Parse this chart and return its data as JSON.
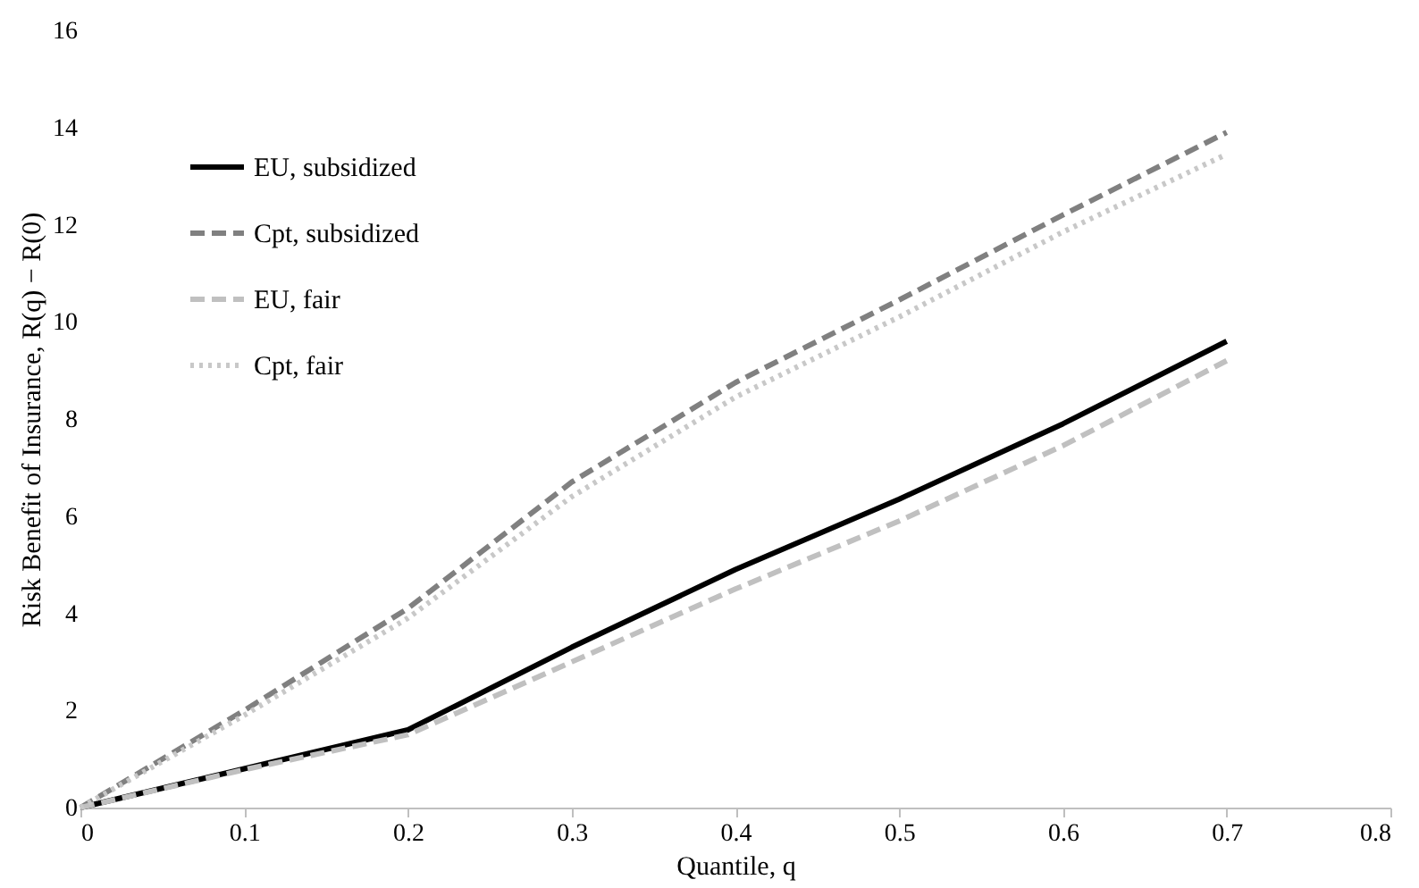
{
  "chart_data": {
    "type": "line",
    "xlabel": "Quantile, q",
    "ylabel": "Risk Benefit of Insurance, R(q) − R(0)",
    "x": [
      0,
      0.1,
      0.2,
      0.3,
      0.4,
      0.5,
      0.6,
      0.7
    ],
    "series": [
      {
        "name": "EU, subsidized",
        "color": "#000000",
        "line_style": "solid",
        "values": [
          0,
          0.8,
          1.6,
          3.3,
          4.9,
          6.35,
          7.9,
          9.6
        ]
      },
      {
        "name": "Cpt, subsidized",
        "color": "#808080",
        "line_style": "dashed",
        "values": [
          0,
          2.0,
          4.1,
          6.7,
          8.75,
          10.45,
          12.2,
          13.9
        ]
      },
      {
        "name": "EU, fair",
        "color": "#c0c0c0",
        "line_style": "dashed",
        "values": [
          0,
          0.78,
          1.5,
          3.0,
          4.5,
          5.9,
          7.45,
          9.2
        ]
      },
      {
        "name": "Cpt, fair",
        "color": "#c8c8c8",
        "line_style": "dotted",
        "values": [
          0,
          1.9,
          3.9,
          6.4,
          8.45,
          10.1,
          11.85,
          13.45
        ]
      }
    ],
    "xlim": [
      0,
      0.8
    ],
    "xticks": [
      0,
      0.1,
      0.2,
      0.3,
      0.4,
      0.5,
      0.6,
      0.7,
      0.8
    ],
    "ylim": [
      0,
      16
    ],
    "yticks": [
      0,
      2,
      4,
      6,
      8,
      10,
      12,
      14,
      16
    ],
    "grid": false,
    "legend": "top left",
    "marker": "none"
  }
}
